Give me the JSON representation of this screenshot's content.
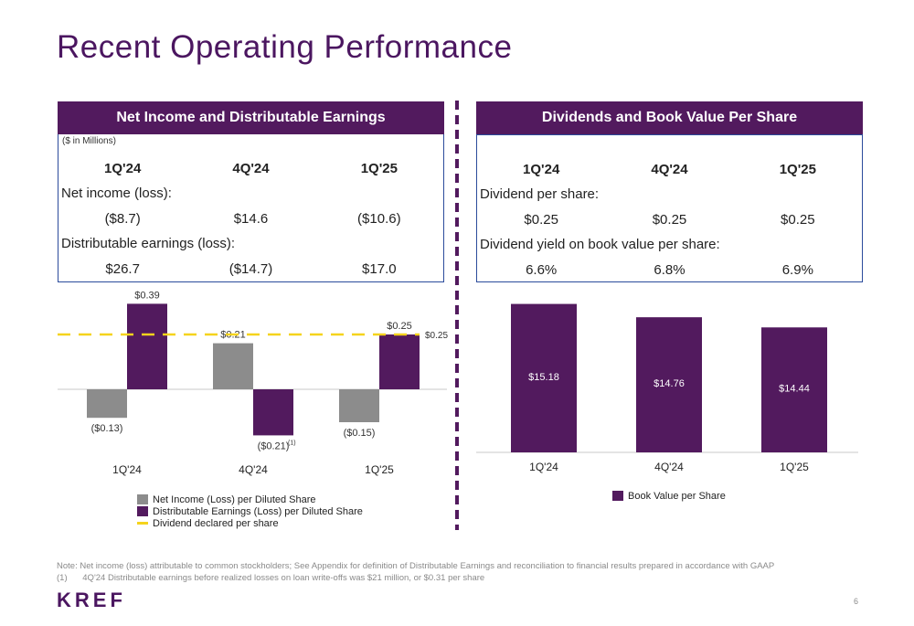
{
  "title": "Recent Operating Performance",
  "left_panel": {
    "header": "Net Income and Distributable Earnings",
    "units": "($ in Millions)",
    "periods": [
      "1Q'24",
      "4Q'24",
      "1Q'25"
    ],
    "net_income_label": "Net income (loss):",
    "net_income_values": [
      "($8.7)",
      "$14.6",
      "($10.6)"
    ],
    "de_label": "Distributable earnings (loss):",
    "de_values": [
      "$26.7",
      "($14.7)",
      "$17.0"
    ]
  },
  "right_panel": {
    "header": "Dividends and Book Value Per Share",
    "periods": [
      "1Q'24",
      "4Q'24",
      "1Q'25"
    ],
    "dividend_label": "Dividend per share:",
    "dividend_values": [
      "$0.25",
      "$0.25",
      "$0.25"
    ],
    "yield_label": "Dividend yield on book value per share:",
    "yield_values": [
      "6.6%",
      "6.8%",
      "6.9%"
    ]
  },
  "chart_data": [
    {
      "type": "bar",
      "categories": [
        "1Q'24",
        "4Q'24",
        "1Q'25"
      ],
      "series": [
        {
          "name": "Net Income (Loss) per Diluted Share",
          "values": [
            -0.13,
            0.21,
            -0.15
          ],
          "labels": [
            "($0.13)",
            "$0.21",
            "($0.15)"
          ],
          "color": "#8c8c8c"
        },
        {
          "name": "Distributable Earnings (Loss) per Diluted Share",
          "values": [
            0.39,
            -0.21,
            0.25
          ],
          "labels": [
            "$0.39",
            "($0.21)",
            "$0.25"
          ],
          "color": "#521a5e"
        }
      ],
      "reference_line": {
        "name": "Dividend declared per share",
        "value": 0.25,
        "label": "$0.25",
        "color": "#f5d31c"
      },
      "footnote_marker": "(1)",
      "ylim": [
        -0.3,
        0.45
      ]
    },
    {
      "type": "bar",
      "categories": [
        "1Q'24",
        "4Q'24",
        "1Q'25"
      ],
      "series": [
        {
          "name": "Book Value per Share",
          "values": [
            15.18,
            14.76,
            14.44
          ],
          "labels": [
            "$15.18",
            "$14.76",
            "$14.44"
          ],
          "color": "#521a5e"
        }
      ],
      "ylim": [
        10.5,
        15.6
      ]
    }
  ],
  "notes": {
    "note": "Note: Net income (loss) attributable to common stockholders; See Appendix for definition of Distributable Earnings  and reconciliation to financial results prepared in accordance with GAAP",
    "footnote_num": "(1)",
    "footnote_text": "4Q'24 Distributable earnings before realized losses on loan write-offs was $21 million, or $0.31 per share"
  },
  "logo": "KREF",
  "page_number": "6"
}
